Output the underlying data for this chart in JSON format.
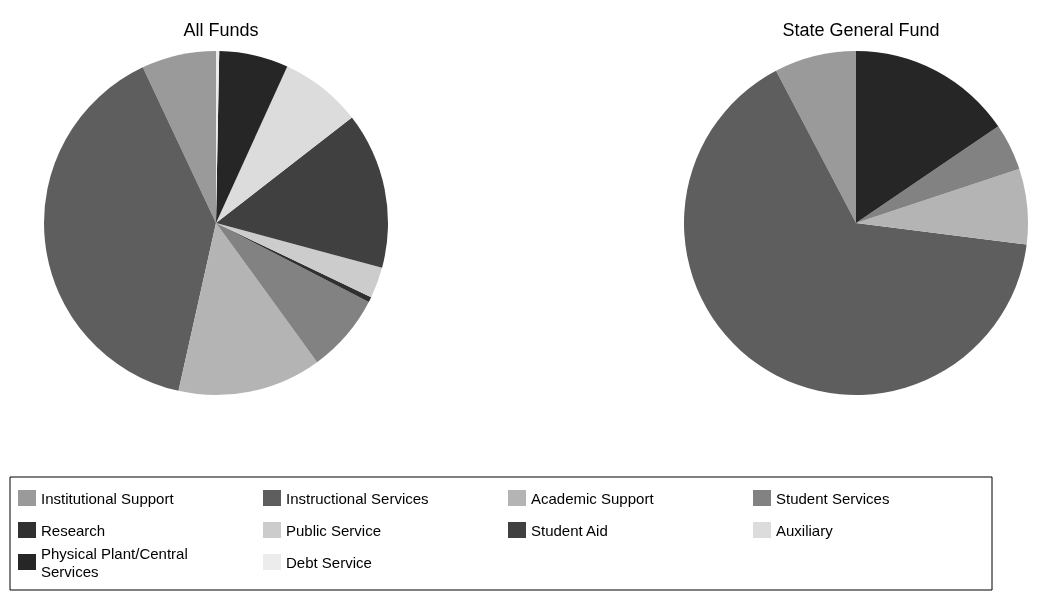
{
  "chart_data": {
    "type": "pie",
    "legend": "bottom",
    "categories": [
      "Institutional Support",
      "Instructional Services",
      "Academic Support",
      "Student Services",
      "Research",
      "Public Service",
      "Student Aid",
      "Auxiliary",
      "Physical Plant/Central Services",
      "Debt Service"
    ],
    "colors": [
      "#9a9a9a",
      "#5e5e5e",
      "#b4b4b4",
      "#828282",
      "#303030",
      "#cccccc",
      "#404040",
      "#dcdcdc",
      "#262626",
      "#ececec"
    ],
    "series": [
      {
        "name": "All Funds",
        "values": [
          7,
          39.5,
          13.5,
          7.4,
          0.5,
          2.9,
          14.7,
          7.7,
          6.5,
          0.3
        ]
      },
      {
        "name": "State General Fund",
        "values": [
          7.7,
          65.3,
          7.1,
          4.4,
          0,
          0,
          0,
          0,
          15.5,
          0
        ]
      }
    ]
  }
}
